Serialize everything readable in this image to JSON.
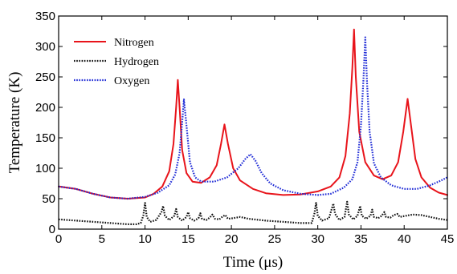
{
  "chart_data": {
    "type": "line",
    "xlabel": "Time (μs)",
    "ylabel": "Temperature (K)",
    "xlim": [
      0,
      45
    ],
    "ylim": [
      0,
      350
    ],
    "x_ticks": [
      "0",
      "5",
      "10",
      "15",
      "20",
      "25",
      "30",
      "35",
      "40",
      "45"
    ],
    "y_ticks": [
      "0",
      "50",
      "100",
      "150",
      "200",
      "250",
      "300",
      "350"
    ],
    "grid": false,
    "legend_position": "top-left",
    "series": [
      {
        "name": "Nitrogen",
        "color": "#e8141b",
        "dash": "solid",
        "points": [
          [
            0,
            70
          ],
          [
            2,
            66
          ],
          [
            4,
            58
          ],
          [
            6,
            52
          ],
          [
            8,
            50
          ],
          [
            10,
            52
          ],
          [
            11,
            58
          ],
          [
            12,
            70
          ],
          [
            12.8,
            95
          ],
          [
            13.3,
            140
          ],
          [
            13.6,
            200
          ],
          [
            13.8,
            245
          ],
          [
            14.0,
            200
          ],
          [
            14.3,
            130
          ],
          [
            14.8,
            92
          ],
          [
            15.5,
            78
          ],
          [
            16.5,
            76
          ],
          [
            17.5,
            85
          ],
          [
            18.3,
            105
          ],
          [
            18.8,
            140
          ],
          [
            19.2,
            172
          ],
          [
            19.6,
            140
          ],
          [
            20.2,
            100
          ],
          [
            21,
            80
          ],
          [
            22.5,
            66
          ],
          [
            24,
            59
          ],
          [
            26,
            56
          ],
          [
            28,
            57
          ],
          [
            30,
            62
          ],
          [
            31.5,
            70
          ],
          [
            32.5,
            85
          ],
          [
            33.2,
            120
          ],
          [
            33.7,
            190
          ],
          [
            34.0,
            265
          ],
          [
            34.2,
            328
          ],
          [
            34.4,
            250
          ],
          [
            34.8,
            160
          ],
          [
            35.5,
            110
          ],
          [
            36.5,
            88
          ],
          [
            37.5,
            82
          ],
          [
            38.5,
            88
          ],
          [
            39.3,
            110
          ],
          [
            39.9,
            160
          ],
          [
            40.4,
            214
          ],
          [
            40.8,
            170
          ],
          [
            41.3,
            115
          ],
          [
            42,
            85
          ],
          [
            43,
            68
          ],
          [
            44,
            60
          ],
          [
            45,
            56
          ]
        ]
      },
      {
        "name": "Hydrogen",
        "color": "#111111",
        "dash": "dotted",
        "points": [
          [
            0,
            16
          ],
          [
            3,
            13
          ],
          [
            6,
            10
          ],
          [
            8,
            8
          ],
          [
            9,
            8
          ],
          [
            9.5,
            10
          ],
          [
            9.8,
            22
          ],
          [
            10,
            43
          ],
          [
            10.2,
            20
          ],
          [
            10.6,
            12
          ],
          [
            11.3,
            15
          ],
          [
            11.9,
            28
          ],
          [
            12.1,
            38
          ],
          [
            12.3,
            22
          ],
          [
            12.8,
            15
          ],
          [
            13.4,
            22
          ],
          [
            13.6,
            33
          ],
          [
            13.8,
            20
          ],
          [
            14.3,
            14
          ],
          [
            14.8,
            20
          ],
          [
            15.0,
            28
          ],
          [
            15.2,
            18
          ],
          [
            15.7,
            14
          ],
          [
            16.2,
            18
          ],
          [
            16.4,
            26
          ],
          [
            16.6,
            17
          ],
          [
            17.1,
            15
          ],
          [
            17.5,
            19
          ],
          [
            17.8,
            24
          ],
          [
            18.1,
            17
          ],
          [
            18.6,
            16
          ],
          [
            19.0,
            21
          ],
          [
            19.3,
            23
          ],
          [
            19.6,
            17
          ],
          [
            20.2,
            18
          ],
          [
            21,
            20
          ],
          [
            22,
            17
          ],
          [
            24,
            14
          ],
          [
            26,
            12
          ],
          [
            28,
            10
          ],
          [
            29.3,
            10
          ],
          [
            29.6,
            25
          ],
          [
            29.8,
            43
          ],
          [
            30.0,
            22
          ],
          [
            30.5,
            14
          ],
          [
            31.3,
            18
          ],
          [
            31.8,
            42
          ],
          [
            32.0,
            25
          ],
          [
            32.5,
            15
          ],
          [
            33.1,
            20
          ],
          [
            33.4,
            45
          ],
          [
            33.6,
            24
          ],
          [
            34.1,
            16
          ],
          [
            34.6,
            22
          ],
          [
            34.9,
            38
          ],
          [
            35.1,
            22
          ],
          [
            35.6,
            17
          ],
          [
            36.1,
            22
          ],
          [
            36.3,
            32
          ],
          [
            36.5,
            20
          ],
          [
            37.0,
            18
          ],
          [
            37.4,
            22
          ],
          [
            37.7,
            28
          ],
          [
            37.9,
            20
          ],
          [
            38.4,
            19
          ],
          [
            38.8,
            23
          ],
          [
            39.2,
            25
          ],
          [
            39.5,
            20
          ],
          [
            40.2,
            22
          ],
          [
            41,
            24
          ],
          [
            42,
            23
          ],
          [
            43,
            20
          ],
          [
            44,
            17
          ],
          [
            45,
            15
          ]
        ]
      },
      {
        "name": "Oxygen",
        "color": "#1f2bd6",
        "dash": "dotted",
        "points": [
          [
            0,
            70
          ],
          [
            2,
            66
          ],
          [
            4,
            58
          ],
          [
            6,
            52
          ],
          [
            8,
            50
          ],
          [
            10,
            53
          ],
          [
            11.5,
            60
          ],
          [
            12.8,
            72
          ],
          [
            13.5,
            90
          ],
          [
            14.0,
            125
          ],
          [
            14.3,
            175
          ],
          [
            14.5,
            213
          ],
          [
            14.8,
            170
          ],
          [
            15.2,
            110
          ],
          [
            15.8,
            85
          ],
          [
            16.5,
            78
          ],
          [
            18,
            78
          ],
          [
            19.5,
            85
          ],
          [
            20.8,
            100
          ],
          [
            21.6,
            115
          ],
          [
            22.2,
            123
          ],
          [
            22.8,
            112
          ],
          [
            23.5,
            92
          ],
          [
            24.5,
            75
          ],
          [
            26,
            64
          ],
          [
            28,
            58
          ],
          [
            30,
            56
          ],
          [
            31.5,
            58
          ],
          [
            33,
            68
          ],
          [
            34.0,
            82
          ],
          [
            34.6,
            110
          ],
          [
            35.0,
            170
          ],
          [
            35.3,
            250
          ],
          [
            35.5,
            315
          ],
          [
            35.7,
            240
          ],
          [
            36.0,
            160
          ],
          [
            36.5,
            108
          ],
          [
            37.3,
            85
          ],
          [
            38.5,
            72
          ],
          [
            40,
            66
          ],
          [
            41.5,
            66
          ],
          [
            43,
            72
          ],
          [
            44,
            78
          ],
          [
            45,
            85
          ]
        ]
      }
    ]
  }
}
